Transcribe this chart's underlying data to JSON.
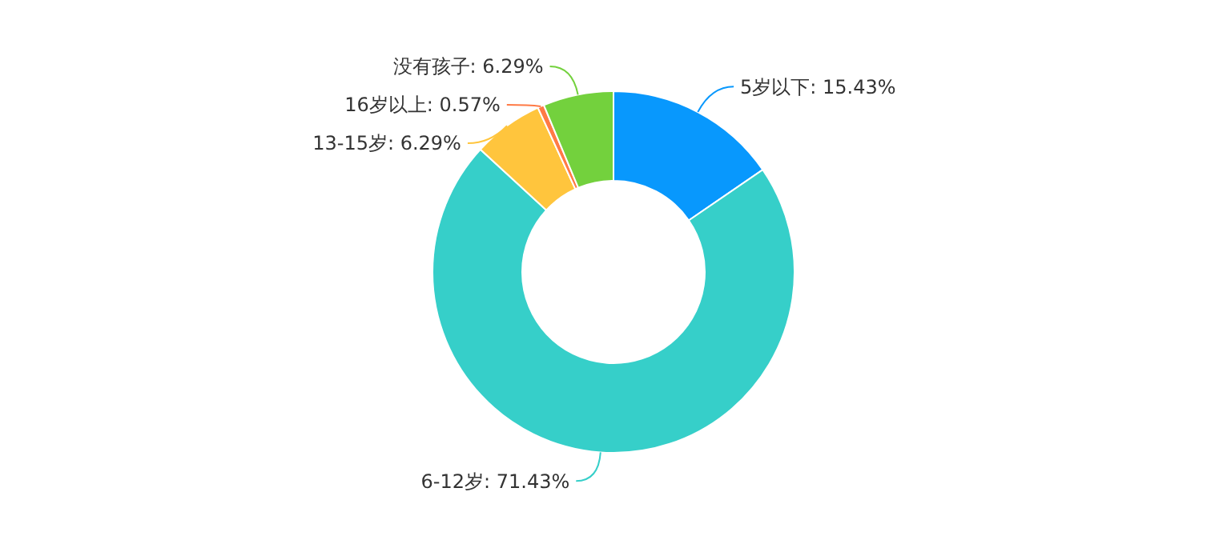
{
  "chart_data": {
    "type": "donut",
    "categories": [
      "5岁以下",
      "6-12岁",
      "13-15岁",
      "16岁以上",
      "没有孩子"
    ],
    "values": [
      15.43,
      71.43,
      6.29,
      0.57,
      6.29
    ],
    "colors": [
      "#0898fd",
      "#36cfc9",
      "#ffc53d",
      "#ff7a45",
      "#73d13d"
    ],
    "value_labels": [
      "15.43%",
      "71.43%",
      "6.29%",
      "0.57%",
      "6.29%"
    ]
  }
}
